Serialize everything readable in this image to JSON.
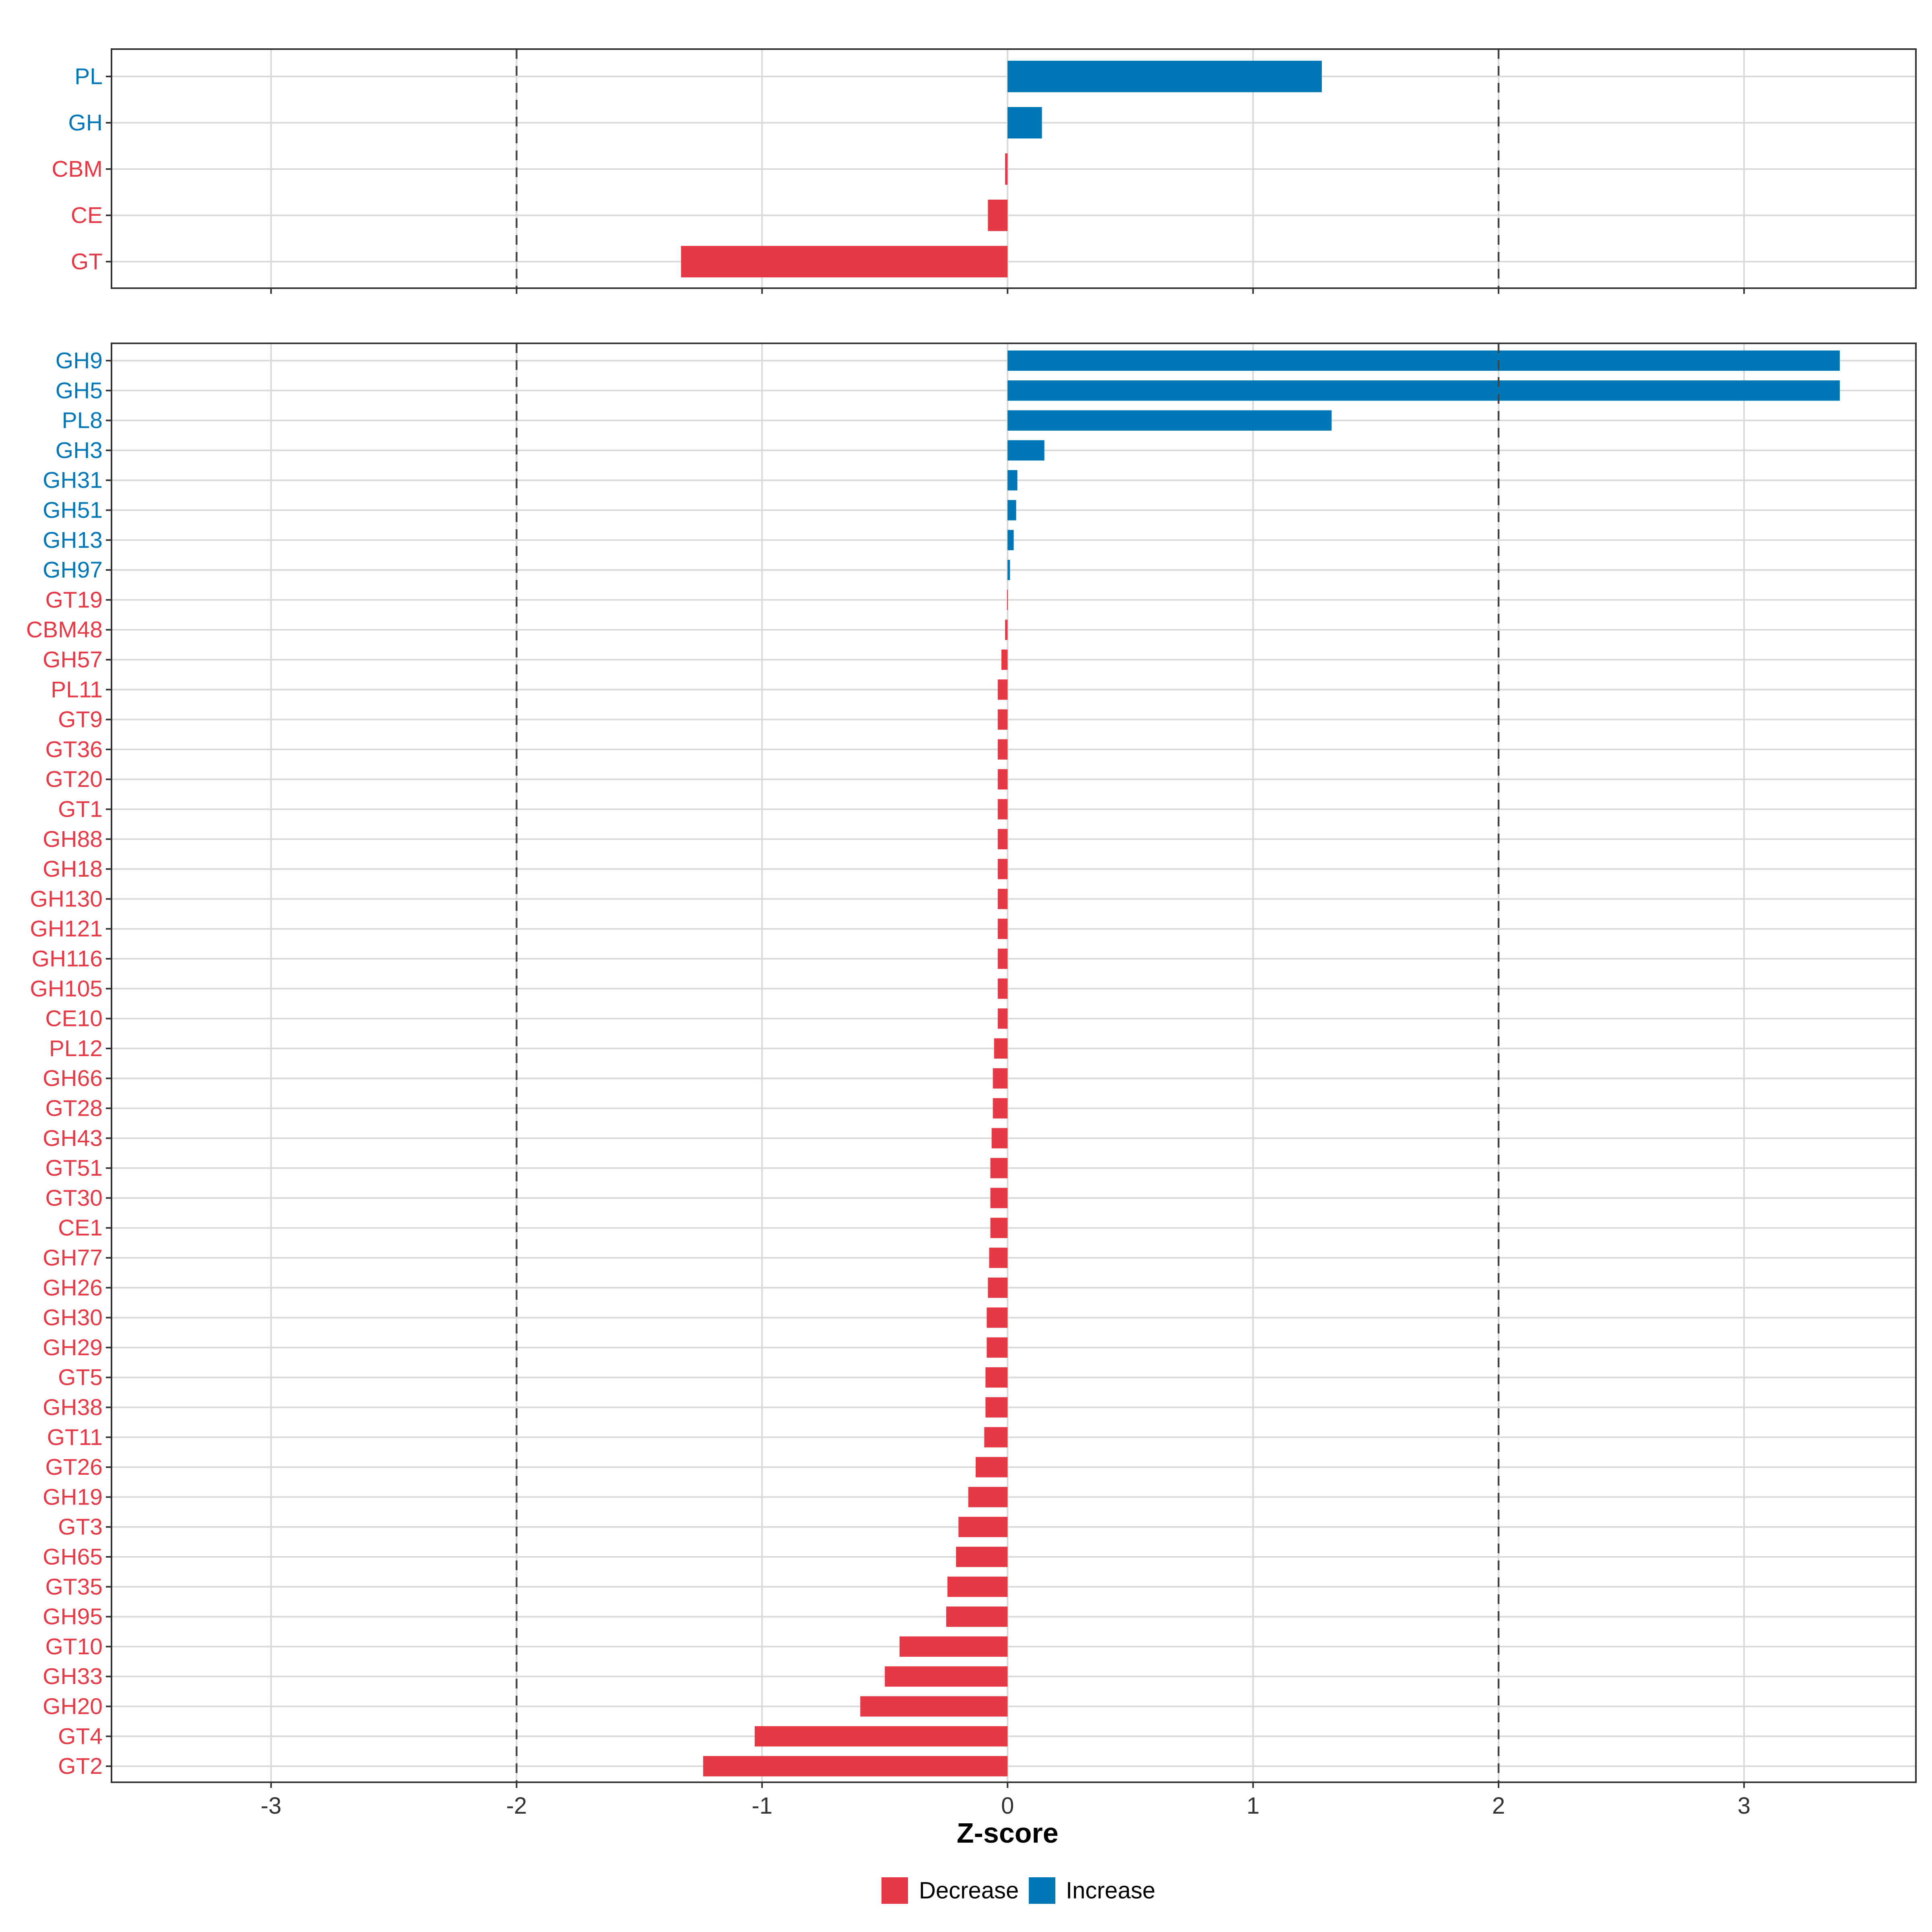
{
  "colors": {
    "decrease": "#E63946",
    "increase": "#0077B6",
    "grid": "#D9D9D9",
    "panel_border": "#333333",
    "dashed": "#444444"
  },
  "legend": {
    "items": [
      {
        "key": "decrease",
        "label": "Decrease"
      },
      {
        "key": "increase",
        "label": "Increase"
      }
    ]
  },
  "chart_data": [
    {
      "type": "bar",
      "orientation": "horizontal",
      "panel": "top",
      "xlim": [
        -3.65,
        3.7
      ],
      "xticks": [
        -3,
        -2,
        -1,
        0,
        1,
        2,
        3
      ],
      "reference_lines": [
        -2,
        2
      ],
      "xlabel": "Z-score",
      "categories": [
        "PL",
        "GH",
        "CBM",
        "CE",
        "GT"
      ],
      "values": [
        1.28,
        0.14,
        -0.01,
        -0.08,
        -1.33
      ]
    },
    {
      "type": "bar",
      "orientation": "horizontal",
      "panel": "bottom",
      "xlim": [
        -3.65,
        3.7
      ],
      "xticks": [
        -3,
        -2,
        -1,
        0,
        1,
        2,
        3
      ],
      "reference_lines": [
        -2,
        2
      ],
      "xlabel": "Z-score",
      "categories": [
        "GH9",
        "GH5",
        "PL8",
        "GH3",
        "GH31",
        "GH51",
        "GH13",
        "GH97",
        "GT19",
        "CBM48",
        "GH57",
        "PL11",
        "GT9",
        "GT36",
        "GT20",
        "GT1",
        "GH88",
        "GH18",
        "GH130",
        "GH121",
        "GH116",
        "GH105",
        "CE10",
        "PL12",
        "GH66",
        "GT28",
        "GH43",
        "GT51",
        "GT30",
        "CE1",
        "GH77",
        "GH26",
        "GH30",
        "GH29",
        "GT5",
        "GH38",
        "GT11",
        "GT26",
        "GH19",
        "GT3",
        "GH65",
        "GT35",
        "GH95",
        "GT10",
        "GH33",
        "GH20",
        "GT4",
        "GT2"
      ],
      "values": [
        3.39,
        3.39,
        1.32,
        0.15,
        0.04,
        0.035,
        0.025,
        0.01,
        -0.002,
        -0.01,
        -0.025,
        -0.04,
        -0.04,
        -0.04,
        -0.04,
        -0.04,
        -0.04,
        -0.04,
        -0.04,
        -0.04,
        -0.04,
        -0.04,
        -0.04,
        -0.055,
        -0.06,
        -0.06,
        -0.065,
        -0.07,
        -0.07,
        -0.07,
        -0.075,
        -0.08,
        -0.085,
        -0.085,
        -0.09,
        -0.09,
        -0.095,
        -0.13,
        -0.16,
        -0.2,
        -0.21,
        -0.245,
        -0.25,
        -0.44,
        -0.5,
        -0.6,
        -1.03,
        -1.24
      ]
    }
  ]
}
